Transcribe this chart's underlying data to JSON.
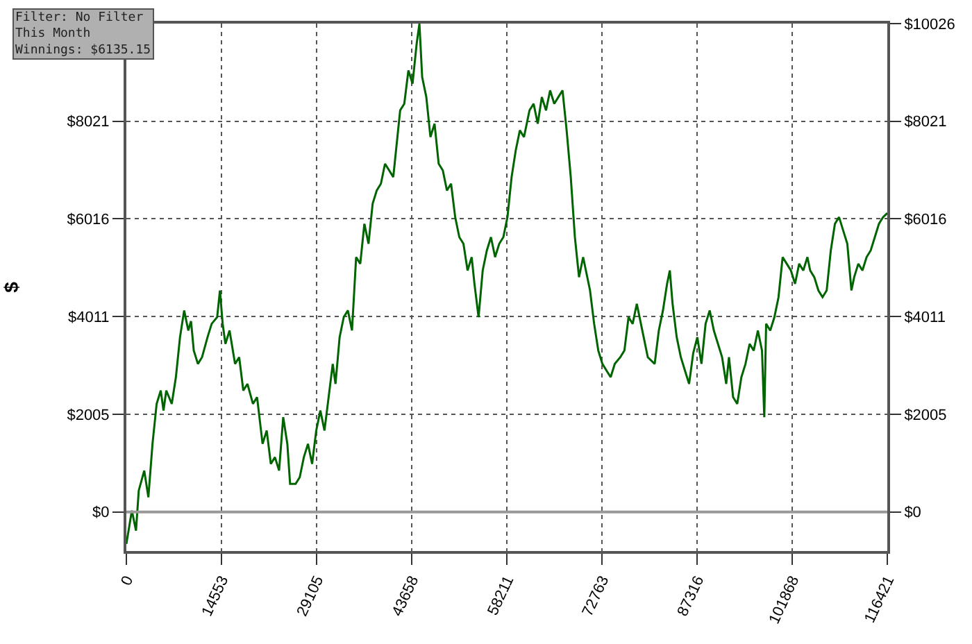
{
  "chart_data": {
    "type": "line",
    "ylabel": "$",
    "annotations": [
      "Filter: No Filter\nThis Month\nWinnings: $6135.15"
    ],
    "x": [
      0,
      842,
      1474,
      1895,
      2737,
      3368,
      4000,
      4631,
      5263,
      5684,
      6105,
      6947,
      7578,
      8210,
      8841,
      9473,
      9894,
      10315,
      10946,
      11578,
      12420,
      13051,
      13893,
      14314,
      14735,
      15156,
      15788,
      16630,
      17261,
      17893,
      18524,
      19366,
      19998,
      20840,
      21471,
      22103,
      22734,
      23366,
      23997,
      24629,
      25050,
      25892,
      26523,
      27155,
      27786,
      28418,
      29049,
      29681,
      30312,
      30944,
      31575,
      31996,
      32628,
      33259,
      33891,
      34522,
      35154,
      35785,
      36417,
      37048,
      37680,
      38311,
      38943,
      39574,
      40206,
      40837,
      41469,
      41890,
      42521,
      43153,
      43784,
      44416,
      44837,
      45258,
      45890,
      46521,
      47153,
      47784,
      48416,
      49047,
      49679,
      50310,
      50942,
      51573,
      52205,
      52836,
      53257,
      53888,
      54520,
      55151,
      55783,
      56414,
      57046,
      57677,
      58309,
      58940,
      59572,
      60203,
      60835,
      61677,
      62308,
      62940,
      63571,
      64203,
      64834,
      65466,
      66097,
      66729,
      67360,
      67992,
      68623,
      69255,
      69886,
      70307,
      70939,
      71570,
      72202,
      72833,
      73465,
      74096,
      74728,
      75570,
      76201,
      76833,
      77464,
      78096,
      78727,
      79780,
      80832,
      81464,
      82095,
      82727,
      83148,
      83569,
      84200,
      84832,
      85463,
      86095,
      86726,
      87358,
      87989,
      88621,
      89252,
      89884,
      90515,
      91147,
      91778,
      92199,
      92831,
      93462,
      94094,
      94725,
      95357,
      95988,
      96620,
      97251,
      97600,
      97883,
      98514,
      99146,
      99777,
      100409,
      101040,
      101672,
      102303,
      102935,
      103566,
      104198,
      104619,
      105250,
      105882,
      106513,
      107145,
      107776,
      108408,
      109039,
      109671,
      110302,
      110934,
      111355,
      111986,
      112618,
      113249,
      113881,
      114512,
      115144,
      115775,
      116421
    ],
    "series": [
      {
        "color": "#006400",
        "values": [
          -657,
          27,
          -383,
          438,
          849,
          301,
          1397,
          2219,
          2492,
          2082,
          2492,
          2219,
          2766,
          3588,
          4136,
          3725,
          3917,
          3314,
          3040,
          3177,
          3588,
          3862,
          3999,
          4547,
          3862,
          3451,
          3725,
          3040,
          3177,
          2492,
          2629,
          2219,
          2356,
          1397,
          1671,
          986,
          1123,
          849,
          1945,
          1397,
          575,
          575,
          712,
          1123,
          1397,
          986,
          1671,
          2082,
          1671,
          2356,
          3040,
          2629,
          3588,
          3999,
          4136,
          3725,
          5231,
          5095,
          5916,
          5505,
          6327,
          6601,
          6738,
          7149,
          7012,
          6875,
          7697,
          8244,
          8381,
          9066,
          8792,
          9614,
          10026,
          8929,
          8518,
          7697,
          7970,
          7149,
          7012,
          6601,
          6738,
          6053,
          5642,
          5505,
          4958,
          5231,
          4684,
          3999,
          4958,
          5368,
          5642,
          5231,
          5505,
          5642,
          6053,
          6875,
          7423,
          7834,
          7697,
          8244,
          8381,
          7970,
          8518,
          8244,
          8655,
          8381,
          8518,
          8655,
          7834,
          6875,
          5642,
          4821,
          5231,
          4958,
          4547,
          3862,
          3314,
          3040,
          2903,
          2766,
          3040,
          3177,
          3314,
          3999,
          3862,
          4273,
          3862,
          3177,
          3040,
          3725,
          4136,
          4684,
          4958,
          4273,
          3588,
          3177,
          2903,
          2629,
          3259,
          3588,
          3040,
          3862,
          4136,
          3725,
          3451,
          3177,
          2629,
          3177,
          2356,
          2219,
          2766,
          3040,
          3451,
          3314,
          3725,
          3314,
          1945,
          3862,
          3725,
          3999,
          4410,
          5231,
          5095,
          4958,
          4684,
          5095,
          4958,
          5231,
          4958,
          4821,
          4547,
          4410,
          4547,
          5368,
          5916,
          6053,
          5779,
          5505,
          4547,
          4821,
          5095,
          4958,
          5231,
          5368,
          5642,
          5916,
          6053,
          6135
        ]
      }
    ],
    "xlim": [
      0,
      116421
    ],
    "xticks": [
      0,
      14553,
      29105,
      43658,
      58211,
      72763,
      87316,
      101868,
      116421
    ],
    "ylim": [
      -802,
      10026
    ],
    "yticks": [
      {
        "value": 0,
        "label": "$0"
      },
      {
        "value": 2005,
        "label": "$2005"
      },
      {
        "value": 4011,
        "label": "$4011"
      },
      {
        "value": 6016,
        "label": "$6016"
      },
      {
        "value": 8021,
        "label": "$8021"
      },
      {
        "value": 10026,
        "label": null
      }
    ],
    "y2lim": [
      -802,
      10026
    ],
    "y2ticks": [
      {
        "value": 0,
        "label": "$0"
      },
      {
        "value": 2005,
        "label": "$2005"
      },
      {
        "value": 4011,
        "label": "$4011"
      },
      {
        "value": 6016,
        "label": "$6016"
      },
      {
        "value": 8021,
        "label": "$8021"
      },
      {
        "value": 10026,
        "label": "$10026"
      }
    ],
    "ref_lines": [
      {
        "axis": "y",
        "value": 0,
        "color": "#999999"
      }
    ],
    "grid": true,
    "line_style": "solid",
    "marker": "none"
  }
}
